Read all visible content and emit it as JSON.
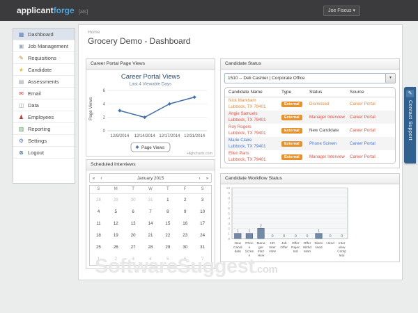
{
  "topbar": {
    "logo_part1": "applicant",
    "logo_part2": "forge",
    "logo_suffix": "[ats]",
    "user_name": "Joe Fiscus",
    "caret": "▾"
  },
  "sidebar": {
    "items": [
      {
        "label": "Dashboard",
        "icon": "dashboard-icon",
        "active": true
      },
      {
        "label": "Job Management",
        "icon": "briefcase-icon",
        "active": false
      },
      {
        "label": "Requisitions",
        "icon": "pencil-icon",
        "active": false
      },
      {
        "label": "Candidate",
        "icon": "star-icon",
        "active": false
      },
      {
        "label": "Assessments",
        "icon": "clipboard-icon",
        "active": false
      },
      {
        "label": "Email",
        "icon": "email-icon",
        "active": false
      },
      {
        "label": "Data",
        "icon": "database-icon",
        "active": false
      },
      {
        "label": "Employees",
        "icon": "person-icon",
        "active": false
      },
      {
        "label": "Reporting",
        "icon": "chart-icon",
        "active": false
      },
      {
        "label": "Settings",
        "icon": "gear-icon",
        "active": false
      },
      {
        "label": "Logout",
        "icon": "power-icon",
        "active": false
      }
    ]
  },
  "breadcrumb": "Home",
  "page_title": "Grocery Demo - Dashboard",
  "panels": {
    "page_views": {
      "title": "Career Portal Page Views"
    },
    "candidate_status": {
      "title": "Candidate Status",
      "dropdown_value": "1510 --  Deli Cashier | Corporate Office",
      "columns": [
        "Candidate Name",
        "Type",
        "Status",
        "Source"
      ],
      "rows": [
        {
          "name": "Nick Markham",
          "location": "Lubbock, TX 79401",
          "type": "External",
          "status": "Dismissed",
          "source": "Career Portal",
          "name_color": "#e8883a",
          "status_color": "#e8883a",
          "source_color": "#e8883a"
        },
        {
          "name": "Angie Samuels",
          "location": "Lubbock, TX 79401",
          "type": "External",
          "status": "Manager Interview",
          "source": "Career Portal",
          "name_color": "#dd5143",
          "status_color": "#dd5143",
          "source_color": "#dd5143"
        },
        {
          "name": "Roy Rogers",
          "location": "Lubbock, TX 79401",
          "type": "External",
          "status": "New Candidate",
          "source": "Career Portal",
          "name_color": "#dd5143",
          "status_color": "#444444",
          "source_color": "#dd5143"
        },
        {
          "name": "Marie Claire",
          "location": "Lubbock, TX 79401",
          "type": "External",
          "status": "Phone Screen",
          "source": "Career Portal",
          "name_color": "#4a77d4",
          "status_color": "#4a77d4",
          "source_color": "#4a77d4"
        },
        {
          "name": "Ellen Paris",
          "location": "Lubbock, TX 79401",
          "type": "External",
          "status": "Manager Interview",
          "source": "Career Portal",
          "name_color": "#dd5143",
          "status_color": "#dd5143",
          "source_color": "#dd5143"
        }
      ],
      "badge_color": "#e8922c"
    },
    "interviews": {
      "title": "Scheduled Interviews",
      "calendar": {
        "month_label": "January 2015",
        "nav_prev_year": "«",
        "nav_prev": "‹",
        "nav_next": "›",
        "nav_next_year": "»",
        "weekdays": [
          "S",
          "M",
          "T",
          "W",
          "T",
          "F",
          "S"
        ],
        "weeks": [
          [
            {
              "d": 28,
              "out": true
            },
            {
              "d": 29,
              "out": true
            },
            {
              "d": 30,
              "out": true
            },
            {
              "d": 31,
              "out": true
            },
            {
              "d": 1,
              "out": false
            },
            {
              "d": 2,
              "out": false
            },
            {
              "d": 3,
              "out": false
            }
          ],
          [
            {
              "d": 4,
              "out": false
            },
            {
              "d": 5,
              "out": false
            },
            {
              "d": 6,
              "out": false
            },
            {
              "d": 7,
              "out": false
            },
            {
              "d": 8,
              "out": false
            },
            {
              "d": 9,
              "out": false
            },
            {
              "d": 10,
              "out": false
            }
          ],
          [
            {
              "d": 11,
              "out": false
            },
            {
              "d": 12,
              "out": false
            },
            {
              "d": 13,
              "out": false
            },
            {
              "d": 14,
              "out": false
            },
            {
              "d": 15,
              "out": false
            },
            {
              "d": 16,
              "out": false
            },
            {
              "d": 17,
              "out": false
            }
          ],
          [
            {
              "d": 18,
              "out": false
            },
            {
              "d": 19,
              "out": false
            },
            {
              "d": 20,
              "out": false
            },
            {
              "d": 21,
              "out": false
            },
            {
              "d": 22,
              "out": false
            },
            {
              "d": 23,
              "out": false
            },
            {
              "d": 24,
              "out": false
            }
          ],
          [
            {
              "d": 25,
              "out": false
            },
            {
              "d": 26,
              "out": false
            },
            {
              "d": 27,
              "out": false
            },
            {
              "d": 28,
              "out": false
            },
            {
              "d": 29,
              "out": false
            },
            {
              "d": 30,
              "out": false
            },
            {
              "d": 31,
              "out": false
            }
          ],
          [
            {
              "d": 1,
              "out": true
            },
            {
              "d": 2,
              "out": true
            },
            {
              "d": 3,
              "out": true
            },
            {
              "d": 4,
              "out": true
            },
            {
              "d": 5,
              "out": true
            },
            {
              "d": 6,
              "out": true
            },
            {
              "d": 7,
              "out": true
            }
          ]
        ]
      }
    },
    "workflow": {
      "title": "Candidate Workflow Status"
    }
  },
  "contact_support": {
    "label": "Contact Support"
  },
  "watermark": {
    "text": "SoftwareSuggest",
    "suffix": ".com"
  },
  "colors": {
    "topbar_bg": "#3b3b3d",
    "logo_accent": "#4ba3d9",
    "sidebar_active_bg": "#dce3ed",
    "badge_orange": "#e8922c",
    "support_tab_blue": "#31608f",
    "line_chart_blue": "#4572a7",
    "bar_fill": "#7389a5",
    "bar_border": "#546b8a"
  },
  "chart_data": [
    {
      "type": "line",
      "title": "Career Portal Views",
      "subtitle": "Last 4 Viewable Days",
      "categories": [
        "12/9/2014",
        "12/14/2014",
        "12/17/2014",
        "12/31/2014"
      ],
      "series": [
        {
          "name": "Page Views",
          "values": [
            3,
            2,
            4,
            5
          ]
        }
      ],
      "xlabel": "",
      "ylabel": "Page Views",
      "ylim": [
        0,
        6
      ],
      "yticks": [
        0,
        2,
        4,
        6
      ],
      "grid": true,
      "legend_position": "bottom",
      "credit": "Highcharts.com",
      "line_color": "#4572a7"
    },
    {
      "type": "bar",
      "categories": [
        "New Candidate",
        "Phone Screen",
        "Manager Interview",
        "HR Interview",
        "Job Offer",
        "Offer Rejected",
        "Offer Withdrawn",
        "Dismissed",
        "Hired",
        "Interview Complete"
      ],
      "category_lines": [
        [
          "New",
          "Candi",
          "date"
        ],
        [
          "Phon",
          "e",
          "Scree",
          "n"
        ],
        [
          "Mana",
          "ger",
          "Inter",
          "view"
        ],
        [
          "HR",
          "Inter",
          "view"
        ],
        [
          "Job",
          "Offer"
        ],
        [
          "Offer",
          "Rejec",
          "ted"
        ],
        [
          "Offer",
          "Withd",
          "rawn"
        ],
        [
          "Dismi",
          "ssed"
        ],
        [
          "Hired"
        ],
        [
          "Inter",
          "view",
          "Comp",
          "lete"
        ]
      ],
      "values": [
        1,
        1,
        2,
        0,
        0,
        0,
        0,
        1,
        0,
        0
      ],
      "title": "",
      "xlabel": "",
      "ylabel": "",
      "ylim": [
        0,
        10
      ],
      "grid": true,
      "bar_color": "#7389a5",
      "bar_border": "#546b8a"
    }
  ]
}
